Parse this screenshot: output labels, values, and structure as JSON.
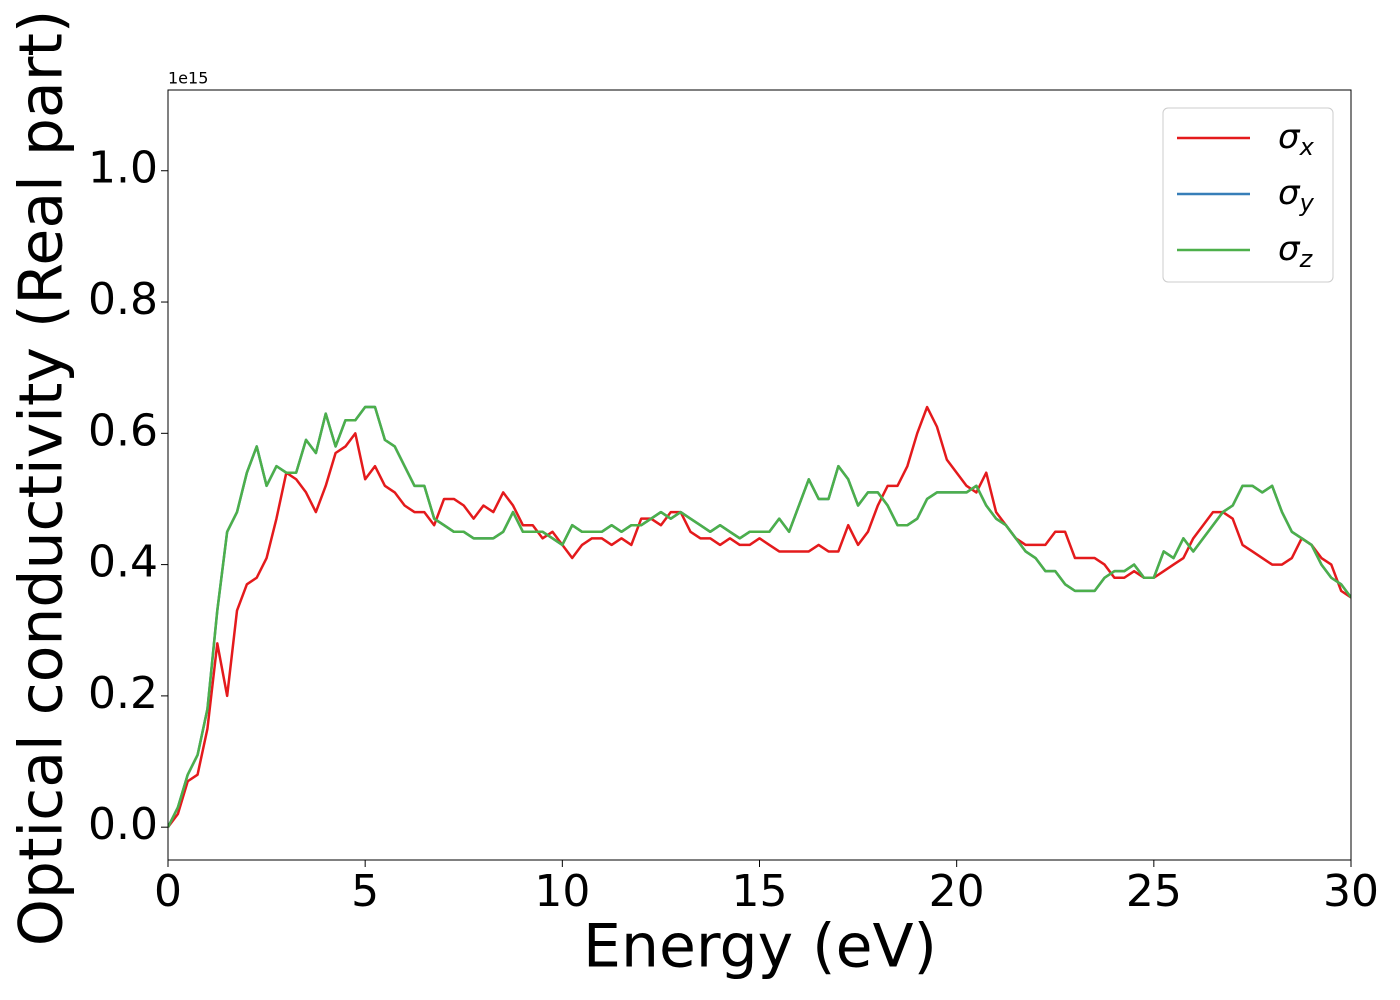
{
  "chart_data": {
    "type": "line",
    "xlabel": "Energy (eV)",
    "ylabel": "Optical conductivity (Real part)",
    "offset_text": "1e15",
    "xlim": [
      0,
      30
    ],
    "ylim": [
      -0.05,
      1.123
    ],
    "xticks": [
      0,
      5,
      10,
      15,
      20,
      25,
      30
    ],
    "yticks": [
      {
        "value": 0,
        "label": "0.0"
      },
      0.2,
      0.4,
      0.6,
      0.8,
      {
        "value": 1,
        "label": "1.0"
      }
    ],
    "legend": "upper right",
    "x": [
      0,
      0.25,
      0.5,
      0.75,
      1,
      1.25,
      1.5,
      1.75,
      2,
      2.25,
      2.5,
      2.75,
      3,
      3.25,
      3.5,
      3.75,
      4,
      4.25,
      4.5,
      4.75,
      5,
      5.25,
      5.5,
      5.75,
      6,
      6.25,
      6.5,
      6.75,
      7,
      7.25,
      7.5,
      7.75,
      8,
      8.25,
      8.5,
      8.75,
      9,
      9.25,
      9.5,
      9.75,
      10,
      10.25,
      10.5,
      10.75,
      11,
      11.25,
      11.5,
      11.75,
      12,
      12.25,
      12.5,
      12.75,
      13,
      13.25,
      13.5,
      13.75,
      14,
      14.25,
      14.5,
      14.75,
      15,
      15.25,
      15.5,
      15.75,
      16,
      16.25,
      16.5,
      16.75,
      17,
      17.25,
      17.5,
      17.75,
      18,
      18.25,
      18.5,
      18.75,
      19,
      19.25,
      19.5,
      19.75,
      20,
      20.25,
      20.5,
      20.75,
      21,
      21.25,
      21.5,
      21.75,
      22,
      22.25,
      22.5,
      22.75,
      23,
      23.25,
      23.5,
      23.75,
      24,
      24.25,
      24.5,
      24.75,
      25,
      25.25,
      25.5,
      25.75,
      26,
      26.25,
      26.5,
      26.75,
      27,
      27.25,
      27.5,
      27.75,
      28,
      28.25,
      28.5,
      28.75,
      29,
      29.25,
      29.5,
      29.75,
      30
    ],
    "series": [
      {
        "name": "σx",
        "color": "#e41a1c",
        "values": [
          0,
          0.02,
          0.07,
          0.08,
          0.15,
          0.28,
          0.2,
          0.33,
          0.37,
          0.38,
          0.41,
          0.47,
          0.54,
          0.53,
          0.51,
          0.48,
          0.52,
          0.57,
          0.58,
          0.6,
          0.53,
          0.55,
          0.52,
          0.51,
          0.49,
          0.48,
          0.48,
          0.46,
          0.5,
          0.5,
          0.49,
          0.47,
          0.49,
          0.48,
          0.51,
          0.49,
          0.46,
          0.46,
          0.44,
          0.45,
          0.43,
          0.41,
          0.43,
          0.44,
          0.44,
          0.43,
          0.44,
          0.43,
          0.47,
          0.47,
          0.46,
          0.48,
          0.48,
          0.45,
          0.44,
          0.44,
          0.43,
          0.44,
          0.43,
          0.43,
          0.44,
          0.43,
          0.42,
          0.42,
          0.42,
          0.42,
          0.43,
          0.42,
          0.42,
          0.46,
          0.43,
          0.45,
          0.49,
          0.52,
          0.52,
          0.55,
          0.6,
          0.64,
          0.61,
          0.56,
          0.54,
          0.52,
          0.51,
          0.54,
          0.48,
          0.46,
          0.44,
          0.43,
          0.43,
          0.43,
          0.45,
          0.45,
          0.41,
          0.41,
          0.41,
          0.4,
          0.38,
          0.38,
          0.39,
          0.38,
          0.38,
          0.39,
          0.4,
          0.41,
          0.44,
          0.46,
          0.48,
          0.48,
          0.47,
          0.43,
          0.42,
          0.41,
          0.4,
          0.4,
          0.41,
          0.44,
          0.43,
          0.41,
          0.4,
          0.36,
          0.35
        ]
      },
      {
        "name": "σy",
        "color": "#377eb8",
        "values": [
          0,
          0.03,
          0.08,
          0.11,
          0.18,
          0.33,
          0.45,
          0.48,
          0.54,
          0.58,
          0.52,
          0.55,
          0.54,
          0.54,
          0.59,
          0.57,
          0.63,
          0.58,
          0.62,
          0.62,
          0.64,
          0.64,
          0.59,
          0.58,
          0.55,
          0.52,
          0.52,
          0.47,
          0.46,
          0.45,
          0.45,
          0.44,
          0.44,
          0.44,
          0.45,
          0.48,
          0.45,
          0.45,
          0.45,
          0.44,
          0.43,
          0.46,
          0.45,
          0.45,
          0.45,
          0.46,
          0.45,
          0.46,
          0.46,
          0.47,
          0.48,
          0.47,
          0.48,
          0.47,
          0.46,
          0.45,
          0.46,
          0.45,
          0.44,
          0.45,
          0.45,
          0.45,
          0.47,
          0.45,
          0.49,
          0.53,
          0.5,
          0.5,
          0.55,
          0.53,
          0.49,
          0.51,
          0.51,
          0.49,
          0.46,
          0.46,
          0.47,
          0.5,
          0.51,
          0.51,
          0.51,
          0.51,
          0.52,
          0.49,
          0.47,
          0.46,
          0.44,
          0.42,
          0.41,
          0.39,
          0.39,
          0.37,
          0.36,
          0.36,
          0.36,
          0.38,
          0.39,
          0.39,
          0.4,
          0.38,
          0.38,
          0.42,
          0.41,
          0.44,
          0.42,
          0.44,
          0.46,
          0.48,
          0.49,
          0.52,
          0.52,
          0.51,
          0.52,
          0.48,
          0.45,
          0.44,
          0.43,
          0.4,
          0.38,
          0.37,
          0.35
        ]
      },
      {
        "name": "σz",
        "color": "#4daf4a",
        "values": [
          0,
          0.03,
          0.08,
          0.11,
          0.18,
          0.33,
          0.45,
          0.48,
          0.54,
          0.58,
          0.52,
          0.55,
          0.54,
          0.54,
          0.59,
          0.57,
          0.63,
          0.58,
          0.62,
          0.62,
          0.64,
          0.64,
          0.59,
          0.58,
          0.55,
          0.52,
          0.52,
          0.47,
          0.46,
          0.45,
          0.45,
          0.44,
          0.44,
          0.44,
          0.45,
          0.48,
          0.45,
          0.45,
          0.45,
          0.44,
          0.43,
          0.46,
          0.45,
          0.45,
          0.45,
          0.46,
          0.45,
          0.46,
          0.46,
          0.47,
          0.48,
          0.47,
          0.48,
          0.47,
          0.46,
          0.45,
          0.46,
          0.45,
          0.44,
          0.45,
          0.45,
          0.45,
          0.47,
          0.45,
          0.49,
          0.53,
          0.5,
          0.5,
          0.55,
          0.53,
          0.49,
          0.51,
          0.51,
          0.49,
          0.46,
          0.46,
          0.47,
          0.5,
          0.51,
          0.51,
          0.51,
          0.51,
          0.52,
          0.49,
          0.47,
          0.46,
          0.44,
          0.42,
          0.41,
          0.39,
          0.39,
          0.37,
          0.36,
          0.36,
          0.36,
          0.38,
          0.39,
          0.39,
          0.4,
          0.38,
          0.38,
          0.42,
          0.41,
          0.44,
          0.42,
          0.44,
          0.46,
          0.48,
          0.49,
          0.52,
          0.52,
          0.51,
          0.52,
          0.48,
          0.45,
          0.44,
          0.43,
          0.4,
          0.38,
          0.37,
          0.35
        ]
      }
    ]
  }
}
